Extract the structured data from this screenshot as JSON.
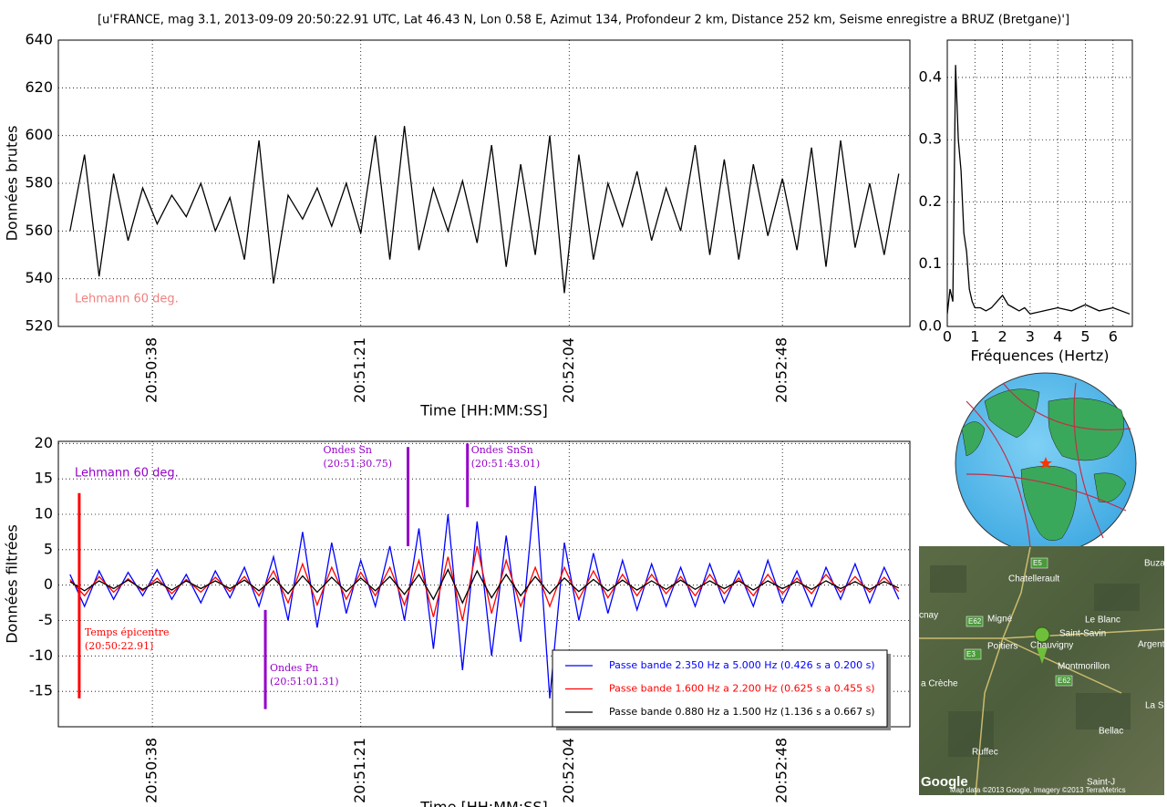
{
  "title": "[u'FRANCE, mag 3.1, 2013-09-09 20:50:22.91 UTC, Lat 46.43 N, Lon 0.58 E, Azimut 134, Profondeur 2 km, Distance 252 km, Seisme enregistre a BRUZ (Bretgane)']",
  "chart_data": [
    {
      "type": "line",
      "ylabel": "Données brutes",
      "xlabel": "Time [HH:MM:SS]",
      "grid": true,
      "color": "#000000",
      "xlim": [
        18.6,
        194.3
      ],
      "ylim": [
        520,
        640
      ],
      "xticks": [
        {
          "value": 38,
          "label": "20:50:38"
        },
        {
          "value": 81,
          "label": "20:51:21"
        },
        {
          "value": 124,
          "label": "20:52:04"
        },
        {
          "value": 168,
          "label": "20:52:48"
        }
      ],
      "yticks": [
        520,
        540,
        560,
        580,
        600,
        620,
        640
      ],
      "annotations": [
        {
          "text": "Lehmann 60 deg.",
          "color": "#f08080"
        }
      ],
      "x": [
        21,
        24,
        27,
        30,
        33,
        36,
        39,
        42,
        45,
        48,
        51,
        54,
        57,
        60,
        63,
        66,
        69,
        72,
        75,
        78,
        81,
        84,
        87,
        90,
        93,
        96,
        99,
        102,
        105,
        108,
        111,
        114,
        117,
        120,
        123,
        126,
        129,
        132,
        135,
        138,
        141,
        144,
        147,
        150,
        153,
        156,
        159,
        162,
        165,
        168,
        171,
        174,
        177,
        180,
        183,
        186,
        189,
        192
      ],
      "values": [
        560,
        592,
        541,
        584,
        556,
        578,
        563,
        575,
        566,
        580,
        560,
        574,
        548,
        598,
        538,
        575,
        565,
        578,
        562,
        580,
        559,
        600,
        548,
        604,
        552,
        578,
        560,
        581,
        555,
        596,
        545,
        588,
        550,
        600,
        534,
        592,
        548,
        580,
        562,
        585,
        556,
        578,
        560,
        596,
        550,
        590,
        548,
        588,
        558,
        582,
        552,
        595,
        545,
        598,
        553,
        580,
        550,
        584
      ]
    },
    {
      "type": "line",
      "xlabel": "Fréquences (Hertz)",
      "grid": true,
      "color": "#000000",
      "xlim": [
        0,
        6.7
      ],
      "ylim": [
        0,
        0.46
      ],
      "xticks": [
        0,
        1,
        2,
        3,
        4,
        5,
        6
      ],
      "yticks": [
        {
          "value": 0,
          "label": "0.0"
        },
        0.1,
        0.2,
        0.3,
        0.4
      ],
      "x": [
        0,
        0.1,
        0.2,
        0.3,
        0.4,
        0.5,
        0.6,
        0.7,
        0.8,
        0.9,
        1,
        1.2,
        1.4,
        1.6,
        1.8,
        2,
        2.2,
        2.4,
        2.6,
        2.8,
        3,
        3.5,
        4,
        4.5,
        5,
        5.5,
        6,
        6.6
      ],
      "values": [
        0.02,
        0.06,
        0.04,
        0.42,
        0.3,
        0.25,
        0.15,
        0.12,
        0.06,
        0.04,
        0.03,
        0.03,
        0.025,
        0.03,
        0.04,
        0.05,
        0.035,
        0.03,
        0.025,
        0.03,
        0.02,
        0.025,
        0.03,
        0.025,
        0.035,
        0.025,
        0.03,
        0.02
      ]
    },
    {
      "type": "line",
      "ylabel": "Données filtrées",
      "xlabel": "Time [HH:MM:SS]",
      "grid": true,
      "legend": "lower right",
      "xlim": [
        18.6,
        194.3
      ],
      "ylim": [
        -20,
        20.3
      ],
      "xticks": [
        {
          "value": 38,
          "label": "20:50:38"
        },
        {
          "value": 81,
          "label": "20:51:21"
        },
        {
          "value": 124,
          "label": "20:52:04"
        },
        {
          "value": 168,
          "label": "20:52:48"
        }
      ],
      "yticks": [
        -15,
        -10,
        -5,
        0,
        5,
        10,
        15,
        20
      ],
      "annotations": [
        {
          "text": "Lehmann 60 deg.",
          "color": "#9400c8"
        }
      ],
      "events": [
        {
          "label": "Temps épicentre",
          "time_label": "(20:50:22.91)",
          "x": 22.91,
          "y": [
            13,
            -16
          ],
          "color": "#ff0000"
        },
        {
          "label": "Ondes Pn",
          "time_label": "(20:51:01.31)",
          "x": 61.31,
          "y": [
            -3.5,
            -17.5
          ],
          "color": "#9400c8"
        },
        {
          "label": "Ondes Sn",
          "time_label": "(20:51:30.75)",
          "x": 90.75,
          "y": [
            19.5,
            5.5
          ],
          "color": "#9400c8"
        },
        {
          "label": "Ondes SnSn",
          "time_label": "(20:51:43.01)",
          "x": 103.01,
          "y": [
            20,
            11
          ],
          "color": "#9400c8"
        }
      ],
      "x": [
        21,
        24,
        27,
        30,
        33,
        36,
        39,
        42,
        45,
        48,
        51,
        54,
        57,
        60,
        63,
        66,
        69,
        72,
        75,
        78,
        81,
        84,
        87,
        90,
        93,
        96,
        99,
        102,
        105,
        108,
        111,
        114,
        117,
        120,
        123,
        126,
        129,
        132,
        135,
        138,
        141,
        144,
        147,
        150,
        153,
        156,
        159,
        162,
        165,
        168,
        171,
        174,
        177,
        180,
        183,
        186,
        189,
        192
      ],
      "series": [
        {
          "name": "Passe bande 2.350 Hz a 5.000 Hz (0.426 s a 0.200 s)",
          "color": "#0000ff",
          "values": [
            1.5,
            -3,
            2,
            -2,
            1.8,
            -1.5,
            2.2,
            -2,
            1.5,
            -2.5,
            2,
            -1.8,
            2.5,
            -3,
            4,
            -5,
            7.5,
            -6,
            6,
            -4,
            3.5,
            -3,
            5.5,
            -5,
            8,
            -9,
            10,
            -12,
            9,
            -10,
            7,
            -8,
            14,
            -16,
            6,
            -5,
            4.5,
            -4,
            3.5,
            -3.5,
            3,
            -3,
            2.5,
            -3,
            3,
            -2.5,
            2,
            -3,
            3.5,
            -2.5,
            2,
            -3,
            2.5,
            -2,
            3,
            -2.5,
            2.5,
            -2
          ]
        },
        {
          "name": "Passe bande 1.600 Hz a 2.200 Hz (0.625 s a 0.455 s)",
          "color": "#ff0000",
          "values": [
            0.8,
            -1.5,
            1.2,
            -1,
            0.9,
            -0.8,
            1,
            -1.2,
            0.8,
            -1,
            1.1,
            -0.9,
            1.2,
            -1.5,
            2,
            -2.5,
            3,
            -2.8,
            2.5,
            -2,
            1.8,
            -1.5,
            2.5,
            -2.8,
            3.5,
            -4.5,
            4,
            -5,
            5.5,
            -4,
            3.5,
            -3,
            2.5,
            -3,
            2.5,
            -2,
            2,
            -1.8,
            1.5,
            -1.5,
            1.5,
            -1.2,
            1.2,
            -1.5,
            1.5,
            -1.2,
            1,
            -1.5,
            1.5,
            -1.2,
            1,
            -1.2,
            1.5,
            -1,
            1.2,
            -1,
            1.1,
            -0.9
          ]
        },
        {
          "name": "Passe bande 0.880 Hz a 1.500 Hz (1.136 s a 0.667 s)",
          "color": "#000000",
          "values": [
            0.5,
            -0.8,
            0.6,
            -0.5,
            0.7,
            -0.6,
            0.5,
            -0.7,
            0.6,
            -0.5,
            0.6,
            -0.5,
            0.7,
            -0.8,
            1,
            -1.2,
            1.3,
            -1,
            1.1,
            -0.9,
            1,
            -0.8,
            1.2,
            -1.3,
            1.5,
            -2,
            2.2,
            -2.5,
            2,
            -1.8,
            1.5,
            -1.5,
            1.2,
            -1.2,
            1,
            -0.9,
            0.8,
            -0.8,
            0.7,
            -0.7,
            0.6,
            -0.6,
            0.7,
            -0.6,
            0.6,
            -0.5,
            0.6,
            -0.7,
            0.6,
            -0.5,
            0.5,
            -0.6,
            0.6,
            -0.5,
            0.5,
            -0.6,
            0.5,
            -0.4
          ]
        }
      ]
    }
  ],
  "map": {
    "labels": [
      "Buza",
      "Chatellerault",
      "cnay",
      "Migné",
      "Le Blanc",
      "Saint-Savin",
      "Poitiers",
      "Chauvigny",
      "Argent",
      "Montmorillon",
      "a Crèche",
      "La S",
      "Bellac",
      "Ruffec",
      "Saint-J",
      "E5",
      "E62",
      "E3",
      "E62"
    ],
    "logo": "Google",
    "attribution": "Map data ©2013 Google, Imagery ©2013 TerraMetrics"
  }
}
